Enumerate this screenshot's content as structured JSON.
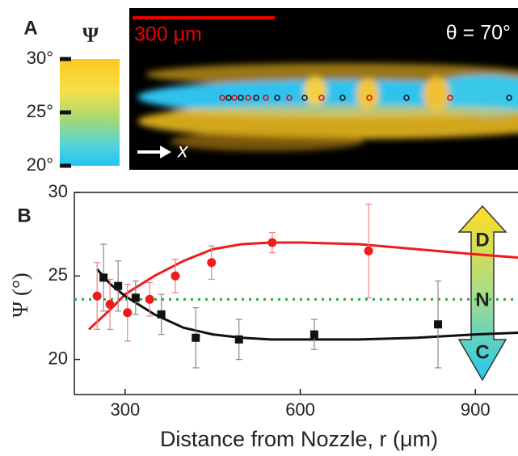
{
  "panel_a": {
    "label": "A",
    "colorbar": {
      "title": "Ψ",
      "ylim": [
        20,
        30
      ],
      "yticks": [
        {
          "value": 20,
          "label": "20°"
        },
        {
          "value": 25,
          "label": "25°"
        },
        {
          "value": 30,
          "label": "30°"
        }
      ]
    },
    "scale_bar": "300 μm",
    "angle": "θ = 70°",
    "axis": "x"
  },
  "chart_data": {
    "type": "scatter",
    "panel_label": "B",
    "x_label": "Distance from Nozzle, r (μm)",
    "y_label": "Ψ (°)",
    "xlim": [
      213,
      973
    ],
    "ylim": [
      17.9,
      30
    ],
    "xticks": [
      300,
      600,
      900
    ],
    "yticks": [
      20,
      25,
      30
    ],
    "series": [
      {
        "color": "#ee1c1c",
        "marker": "circle",
        "x": [
          252,
          274,
          304,
          342,
          386,
          448,
          552,
          717
        ],
        "values": [
          23.8,
          23.3,
          22.8,
          23.6,
          25.0,
          25.8,
          27.0,
          26.5
        ],
        "errors": [
          2.0,
          1.5,
          1.7,
          1.0,
          1.0,
          1.0,
          0.6,
          2.8
        ]
      },
      {
        "color": "#111111",
        "marker": "square",
        "x": [
          263,
          288,
          318,
          362,
          421,
          495,
          624,
          836
        ],
        "values": [
          24.9,
          24.4,
          23.7,
          22.7,
          21.3,
          21.2,
          21.5,
          22.1
        ],
        "errors": [
          2.0,
          1.5,
          1.0,
          1.2,
          1.8,
          1.2,
          0.9,
          2.6
        ]
      }
    ],
    "fits": [
      {
        "color": "#ee1c1c",
        "x": [
          238,
          275,
          300,
          350,
          400,
          450,
          500,
          550,
          600,
          700,
          800,
          900,
          973
        ],
        "values": [
          21.8,
          23.0,
          23.9,
          25.0,
          25.9,
          26.6,
          26.9,
          27.0,
          27.0,
          26.9,
          26.6,
          26.3,
          26.1
        ]
      },
      {
        "color": "#111111",
        "x": [
          252,
          275,
          300,
          350,
          400,
          450,
          500,
          550,
          600,
          700,
          800,
          900,
          973
        ],
        "values": [
          25.4,
          24.5,
          23.8,
          22.7,
          21.9,
          21.5,
          21.3,
          21.2,
          21.2,
          21.2,
          21.3,
          21.5,
          21.6
        ]
      }
    ],
    "reference_line": {
      "value": 23.6,
      "color": "#22aa44"
    },
    "arrow_labels": [
      "D",
      "N",
      "C"
    ]
  }
}
